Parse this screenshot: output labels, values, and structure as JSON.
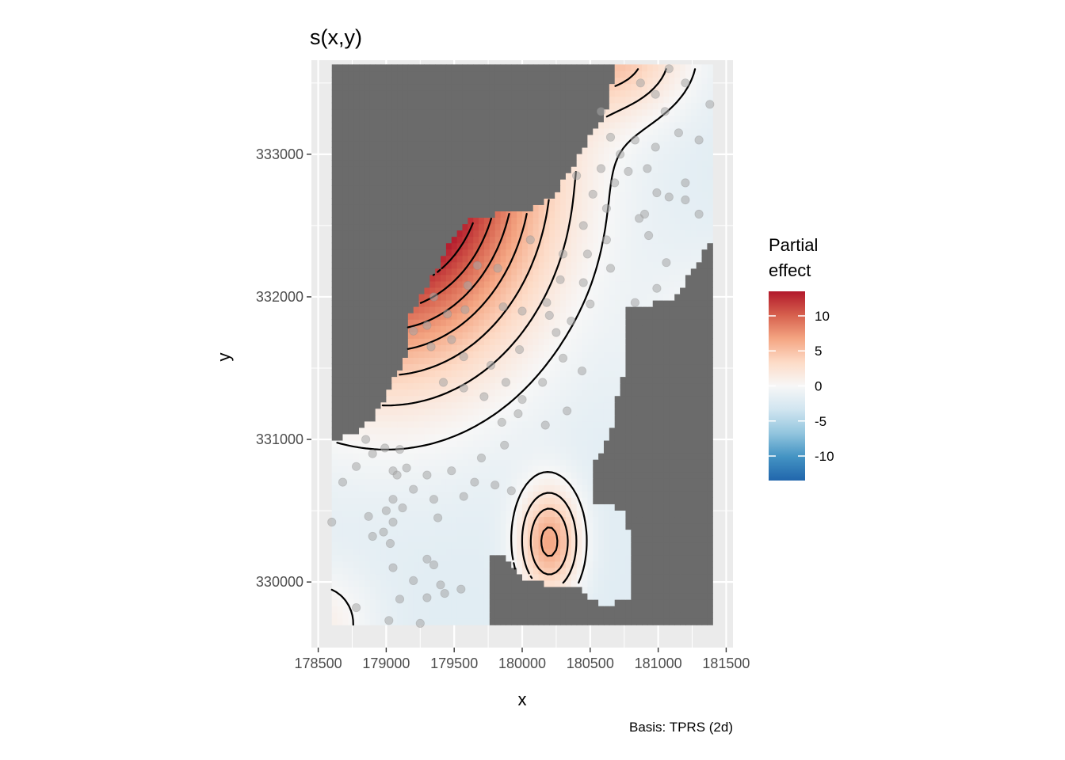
{
  "chart_data": {
    "type": "heatmap",
    "title": "s(x,y)",
    "caption": "Basis: TPRS (2d)",
    "xlabel": "x",
    "ylabel": "y",
    "xlim": [
      178450,
      181550
    ],
    "ylim": [
      329540,
      333660
    ],
    "x_ticks": [
      178500,
      179000,
      179500,
      180000,
      180500,
      181000,
      181500
    ],
    "x_tick_labels": [
      "178500",
      "179000",
      "179500",
      "180000",
      "180500",
      "181000",
      "181500"
    ],
    "y_ticks": [
      330000,
      331000,
      332000,
      333000
    ],
    "y_tick_labels": [
      "330000",
      "331000",
      "332000",
      "333000"
    ],
    "raster_extent": {
      "x": [
        178600,
        181400
      ],
      "y": [
        329700,
        333630
      ]
    },
    "grid": true,
    "panel_background": "#ebebeb",
    "masked_color": "#6b6b6b",
    "legend": {
      "title": "Partial effect",
      "title_lines": [
        "Partial",
        "effect"
      ],
      "position": "right",
      "range": [
        -13.5,
        13.5
      ],
      "breaks": [
        10,
        5,
        0,
        -5,
        -10
      ],
      "break_labels": [
        "10",
        "5",
        "0",
        "-5",
        "-10"
      ],
      "palette": "RdBu (reversed)",
      "colors": [
        "#b2182b",
        "#d6604d",
        "#f4a582",
        "#fddbc7",
        "#f7f7f7",
        "#d1e5f0",
        "#92c5de",
        "#4393c3",
        "#2166ac"
      ]
    },
    "contour_color": "#000000",
    "point_color": "#a6a6a6",
    "valid_region": [
      [
        178600,
        329700
      ],
      [
        179780,
        329700
      ],
      [
        179780,
        330170
      ],
      [
        179870,
        330170
      ],
      [
        179970,
        330050
      ],
      [
        180170,
        329980
      ],
      [
        180400,
        329990
      ],
      [
        180520,
        329880
      ],
      [
        180600,
        329840
      ],
      [
        180780,
        329870
      ],
      [
        180820,
        330000
      ],
      [
        180820,
        330280
      ],
      [
        180740,
        330500
      ],
      [
        180620,
        330550
      ],
      [
        180540,
        330560
      ],
      [
        180540,
        330870
      ],
      [
        180640,
        331000
      ],
      [
        180700,
        331300
      ],
      [
        180780,
        331600
      ],
      [
        180780,
        331950
      ],
      [
        180950,
        331950
      ],
      [
        181120,
        332000
      ],
      [
        181260,
        332200
      ],
      [
        181400,
        332430
      ],
      [
        181400,
        333630
      ],
      [
        180700,
        333630
      ],
      [
        180640,
        333400
      ],
      [
        180600,
        333250
      ],
      [
        180450,
        333050
      ],
      [
        180380,
        332900
      ],
      [
        180210,
        332700
      ],
      [
        180070,
        332620
      ],
      [
        179850,
        332590
      ],
      [
        179610,
        332540
      ],
      [
        179470,
        332380
      ],
      [
        179370,
        332200
      ],
      [
        179250,
        332000
      ],
      [
        179150,
        331830
      ],
      [
        179150,
        331600
      ],
      [
        179050,
        331400
      ],
      [
        178900,
        331150
      ],
      [
        178780,
        331050
      ],
      [
        178600,
        330980
      ]
    ],
    "bumps": [
      {
        "x": 179000,
        "y": 332900,
        "sx": 750,
        "sy": 900,
        "amp": 22
      },
      {
        "x": 180700,
        "y": 333700,
        "sx": 380,
        "sy": 300,
        "amp": 6
      },
      {
        "x": 181400,
        "y": 331600,
        "sx": 350,
        "sy": 450,
        "amp": 2.5
      },
      {
        "x": 180200,
        "y": 330280,
        "sx": 160,
        "sy": 270,
        "amp": 8.5
      },
      {
        "x": 178500,
        "y": 329700,
        "sx": 280,
        "sy": 280,
        "amp": 3
      }
    ],
    "base_effect": -2,
    "contour_levels": [
      -4,
      -2,
      0,
      2,
      4,
      6,
      8,
      10,
      12
    ],
    "points": [
      [
        178600,
        330420
      ],
      [
        178680,
        330700
      ],
      [
        178780,
        330810
      ],
      [
        178850,
        331000
      ],
      [
        178780,
        329820
      ],
      [
        178900,
        330900
      ],
      [
        178990,
        330940
      ],
      [
        179050,
        330780
      ],
      [
        179100,
        330930
      ],
      [
        179080,
        330750
      ],
      [
        179150,
        330800
      ],
      [
        179200,
        330650
      ],
      [
        179050,
        330580
      ],
      [
        179120,
        330520
      ],
      [
        179000,
        330500
      ],
      [
        178870,
        330460
      ],
      [
        178980,
        330350
      ],
      [
        179050,
        330420
      ],
      [
        179030,
        330270
      ],
      [
        178900,
        330320
      ],
      [
        179050,
        330100
      ],
      [
        179100,
        329880
      ],
      [
        179020,
        329730
      ],
      [
        179250,
        329710
      ],
      [
        179200,
        330010
      ],
      [
        179300,
        330160
      ],
      [
        179350,
        330120
      ],
      [
        179300,
        329890
      ],
      [
        179400,
        329980
      ],
      [
        179430,
        329920
      ],
      [
        179550,
        329950
      ],
      [
        179380,
        330450
      ],
      [
        179350,
        330580
      ],
      [
        179300,
        330750
      ],
      [
        179480,
        330780
      ],
      [
        179570,
        330600
      ],
      [
        179650,
        330700
      ],
      [
        179700,
        330870
      ],
      [
        179800,
        330680
      ],
      [
        179920,
        330640
      ],
      [
        179870,
        330960
      ],
      [
        179850,
        331120
      ],
      [
        179970,
        331180
      ],
      [
        180000,
        331280
      ],
      [
        179880,
        331400
      ],
      [
        180150,
        331400
      ],
      [
        180170,
        331100
      ],
      [
        180330,
        331200
      ],
      [
        180300,
        331570
      ],
      [
        180440,
        331480
      ],
      [
        179980,
        331630
      ],
      [
        179770,
        331520
      ],
      [
        179720,
        331300
      ],
      [
        179570,
        331580
      ],
      [
        179570,
        331360
      ],
      [
        179420,
        331400
      ],
      [
        179480,
        331700
      ],
      [
        179330,
        331650
      ],
      [
        179300,
        331800
      ],
      [
        179200,
        331760
      ],
      [
        179450,
        331880
      ],
      [
        179580,
        331910
      ],
      [
        179350,
        332000
      ],
      [
        179600,
        332080
      ],
      [
        179670,
        332220
      ],
      [
        179820,
        332200
      ],
      [
        179860,
        331930
      ],
      [
        180000,
        331900
      ],
      [
        180180,
        331960
      ],
      [
        180280,
        332120
      ],
      [
        180450,
        332100
      ],
      [
        180360,
        331830
      ],
      [
        180500,
        331950
      ],
      [
        180250,
        331750
      ],
      [
        180200,
        331870
      ],
      [
        180060,
        332400
      ],
      [
        180300,
        332300
      ],
      [
        180480,
        332300
      ],
      [
        180620,
        332400
      ],
      [
        180620,
        332620
      ],
      [
        180520,
        332720
      ],
      [
        180450,
        332500
      ],
      [
        180400,
        332850
      ],
      [
        180580,
        332900
      ],
      [
        180680,
        332800
      ],
      [
        180780,
        332880
      ],
      [
        180720,
        333000
      ],
      [
        180830,
        333100
      ],
      [
        180650,
        333120
      ],
      [
        180580,
        333300
      ],
      [
        180920,
        332900
      ],
      [
        181080,
        332700
      ],
      [
        181200,
        332800
      ],
      [
        180990,
        332730
      ],
      [
        180900,
        332580
      ],
      [
        180860,
        332550
      ],
      [
        180930,
        332430
      ],
      [
        180650,
        332200
      ],
      [
        180980,
        333050
      ],
      [
        181050,
        333300
      ],
      [
        181150,
        333150
      ],
      [
        181300,
        333100
      ],
      [
        181380,
        333350
      ],
      [
        181200,
        333500
      ],
      [
        181080,
        333600
      ],
      [
        180980,
        333420
      ],
      [
        180870,
        333500
      ],
      [
        181200,
        332680
      ],
      [
        181300,
        332580
      ],
      [
        181060,
        332240
      ],
      [
        180990,
        332060
      ],
      [
        180830,
        331960
      ]
    ]
  }
}
